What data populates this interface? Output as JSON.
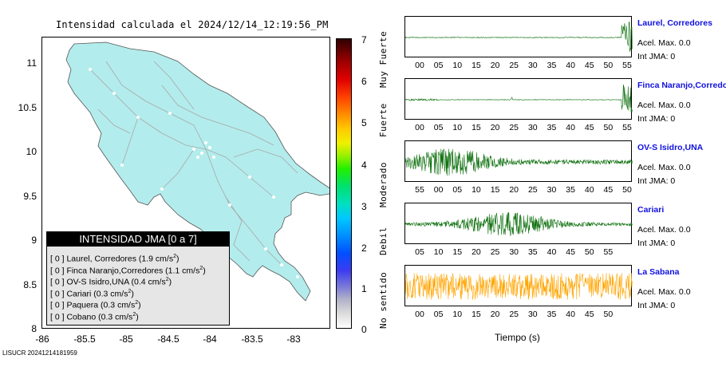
{
  "map": {
    "title": "Intensidad calculada el 2024/12/14_12:19:56_PM",
    "y_ticks": [
      "11",
      "10.5",
      "10",
      "9.5",
      "9",
      "8.5",
      "8"
    ],
    "x_ticks": [
      "-86",
      "-85.5",
      "-85",
      "-84.5",
      "-84",
      "-83.5",
      "-83"
    ],
    "land_color": "#b3ecec",
    "road_color": "#a8a8a8"
  },
  "legend": {
    "header": "INTENSIDAD JMA [0 a 7]",
    "rows": [
      {
        "level": "[ 0 ]",
        "label": "Laurel, Corredores (1.9 cm/s",
        "sup": "2",
        "close": ")"
      },
      {
        "level": "[ 0 ]",
        "label": "Finca Naranjo,Corredores (1.1 cm/s",
        "sup": "2",
        "close": ")"
      },
      {
        "level": "[ 0 ]",
        "label": "OV-S Isidro,UNA (0.4 cm/s",
        "sup": "2",
        "close": ")"
      },
      {
        "level": "[ 0 ]",
        "label": "Cariari (0.3 cm/s",
        "sup": "2",
        "close": ")"
      },
      {
        "level": "[ 0 ]",
        "label": "Paquera (0.3 cm/s",
        "sup": "2",
        "close": ")"
      },
      {
        "level": "[ 0 ]",
        "label": "Cobano (0.3 cm/s",
        "sup": "2",
        "close": ")"
      }
    ]
  },
  "colorbar": {
    "ticks": [
      "7",
      "6",
      "5",
      "4",
      "3",
      "2",
      "1",
      "0"
    ],
    "words": [
      "Muy Fuerte",
      "Fuerte",
      "Moderado",
      "Debil",
      "No sentido"
    ]
  },
  "panels": [
    {
      "station": "Laurel, Corredores",
      "accel": "Acel. Max. 0.0",
      "jma": "Int JMA: 0",
      "ticks": [
        "00",
        "05",
        "10",
        "15",
        "20",
        "25",
        "30",
        "35",
        "40",
        "45",
        "50",
        "55"
      ],
      "color": "#0a6e0a"
    },
    {
      "station": "Finca Naranjo,Corredor",
      "accel": "Acel. Max. 0.0",
      "jma": "Int JMA: 0",
      "ticks": [
        "00",
        "05",
        "10",
        "15",
        "20",
        "25",
        "30",
        "35",
        "40",
        "45",
        "50",
        "55"
      ],
      "color": "#0a6e0a"
    },
    {
      "station": "OV-S Isidro,UNA",
      "accel": "Acel. Max. 0.0",
      "jma": "Int JMA: 0",
      "ticks": [
        "55",
        "00",
        "05",
        "10",
        "15",
        "20",
        "25",
        "30",
        "35",
        "40",
        "45",
        "50"
      ],
      "color": "#0a6e0a"
    },
    {
      "station": "Cariari",
      "accel": "Acel. Max. 0.0",
      "jma": "Int JMA: 0",
      "ticks": [
        "05",
        "10",
        "15",
        "20",
        "25",
        "30",
        "35",
        "40",
        "45",
        "50",
        "55"
      ],
      "color": "#0a6e0a"
    },
    {
      "station": "La Sabana",
      "accel": "Acel. Max. 0.0",
      "jma": "Int JMA: 0",
      "ticks": [
        "00",
        "05",
        "10",
        "15",
        "20",
        "25",
        "30",
        "35",
        "40",
        "45",
        "50"
      ],
      "color": "#ffa500"
    }
  ],
  "time_axis_label": "Tiempo (s)",
  "footer": "LISUCR 20241214181959"
}
